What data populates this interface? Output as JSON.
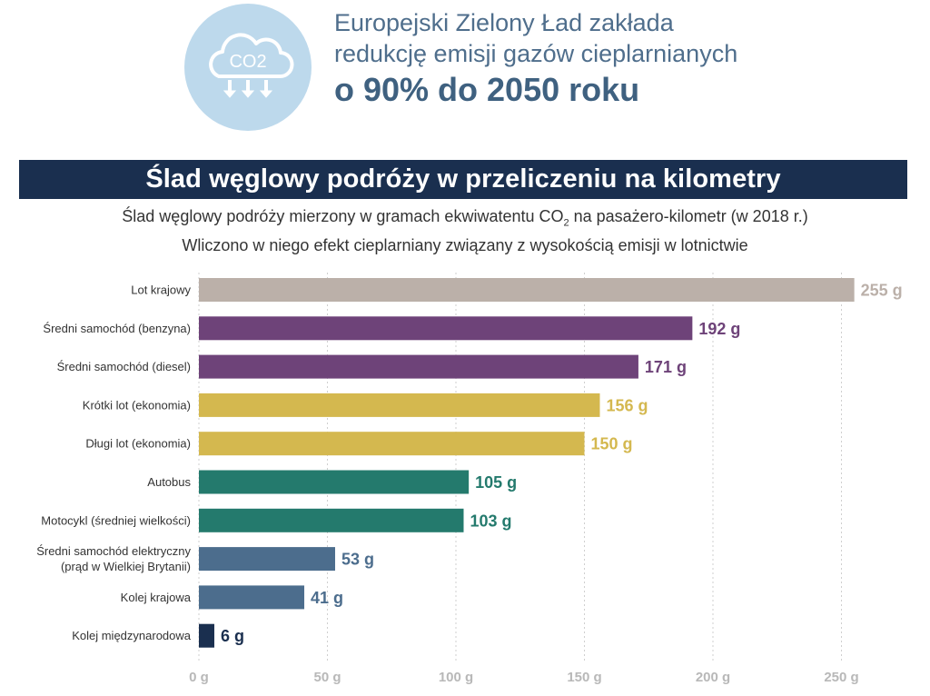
{
  "header": {
    "icon": "co2-cloud-icon",
    "icon_text": "CO2",
    "line1": "Europejski Zielony Ład zakłada",
    "line2": "redukcję emisji gazów cieplarnianych",
    "line3": "o 90% do 2050 roku"
  },
  "colors": {
    "grey": "#bbb0a9",
    "purple": "#6e4379",
    "gold": "#d4b84f",
    "teal": "#247a6d",
    "slate": "#4c6d8d",
    "navy": "#1a2f4f"
  },
  "chart_data": {
    "type": "bar",
    "orientation": "horizontal",
    "title": "Ślad węglowy podróży w przeliczeniu na kilometry",
    "subtitle_line1_a": "Ślad węglowy podróży mierzony w gramach ekwiwatentu CO",
    "subtitle_line1_sub": "2",
    "subtitle_line1_b": " na pasażero-kilometr (w 2018 r.)",
    "subtitle_line2": "Wliczono w niego efekt cieplarniany związany z wysokością emisji w lotnictwie",
    "xlim": [
      0,
      255
    ],
    "grid": true,
    "ticks": [
      0,
      50,
      100,
      150,
      200,
      250
    ],
    "tick_labels": [
      "0 g",
      "50 g",
      "100 g",
      "150 g",
      "200 g",
      "250 g"
    ],
    "categories": [
      [
        "Lot krajowy"
      ],
      [
        "Średni samochód (benzyna)"
      ],
      [
        "Średni samochód (diesel)"
      ],
      [
        "Krótki lot (ekonomia)"
      ],
      [
        "Długi lot (ekonomia)"
      ],
      [
        "Autobus"
      ],
      [
        "Motocykl (średniej wielkości)"
      ],
      [
        "Średni samochód elektryczny",
        "(prąd w Wielkiej Brytanii)"
      ],
      [
        "Kolej krajowa"
      ],
      [
        "Kolej międzynarodowa"
      ]
    ],
    "values": [
      255,
      192,
      171,
      156,
      150,
      105,
      103,
      53,
      41,
      6
    ],
    "value_labels": [
      "255 g",
      "192 g",
      "171 g",
      "156 g",
      "150 g",
      "105 g",
      "103 g",
      "53 g",
      "41 g",
      "6 g"
    ],
    "bar_colors": [
      "#bbb0a9",
      "#6e4379",
      "#6e4379",
      "#d4b84f",
      "#d4b84f",
      "#247a6d",
      "#247a6d",
      "#4c6d8d",
      "#4c6d8d",
      "#1a2f4f"
    ]
  }
}
